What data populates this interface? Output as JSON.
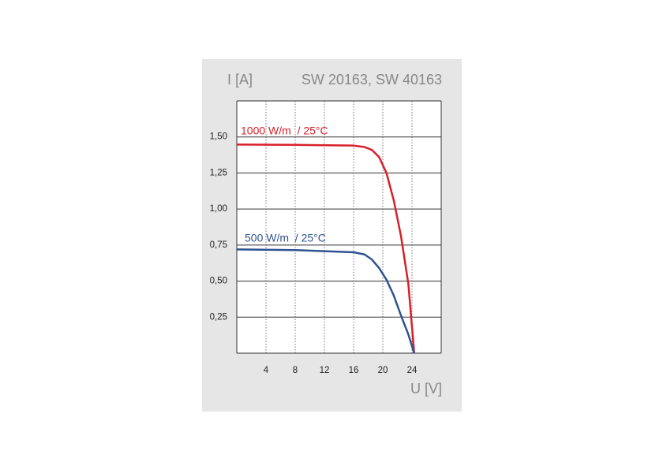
{
  "chart_data": {
    "type": "line",
    "title": "SW 20163, SW 40163",
    "y_label": "I [A]",
    "x_label": "U [V]",
    "xlim": [
      0,
      28
    ],
    "ylim": [
      0,
      1.75
    ],
    "xticks": [
      4,
      8,
      12,
      16,
      20,
      24
    ],
    "yticks": [
      {
        "value": 0.25,
        "label": "0,25"
      },
      {
        "value": 0.5,
        "label": "0,50"
      },
      {
        "value": 0.75,
        "label": "0,75"
      },
      {
        "value": 1.0,
        "label": "1,00"
      },
      {
        "value": 1.25,
        "label": "1,25"
      },
      {
        "value": 1.5,
        "label": "1,50"
      },
      {
        "value": 1.75,
        "label": null
      }
    ],
    "grid": true,
    "series": [
      {
        "name": "1000 W/m  / 25°C",
        "color": "#d8202a",
        "x": [
          0,
          8,
          16,
          17.5,
          18.5,
          19.5,
          20.5,
          21.5,
          22.5,
          23.5,
          24.3
        ],
        "values": [
          1.447,
          1.445,
          1.44,
          1.43,
          1.41,
          1.36,
          1.25,
          1.06,
          0.81,
          0.48,
          0
        ]
      },
      {
        "name": "500 W/m  / 25°C",
        "color": "#2f5390",
        "x": [
          0,
          8,
          16,
          17.5,
          18.5,
          19.5,
          20.5,
          21.5,
          22.5,
          23.5,
          24.3
        ],
        "values": [
          0.72,
          0.715,
          0.7,
          0.685,
          0.65,
          0.59,
          0.51,
          0.4,
          0.26,
          0.13,
          0
        ]
      }
    ]
  }
}
